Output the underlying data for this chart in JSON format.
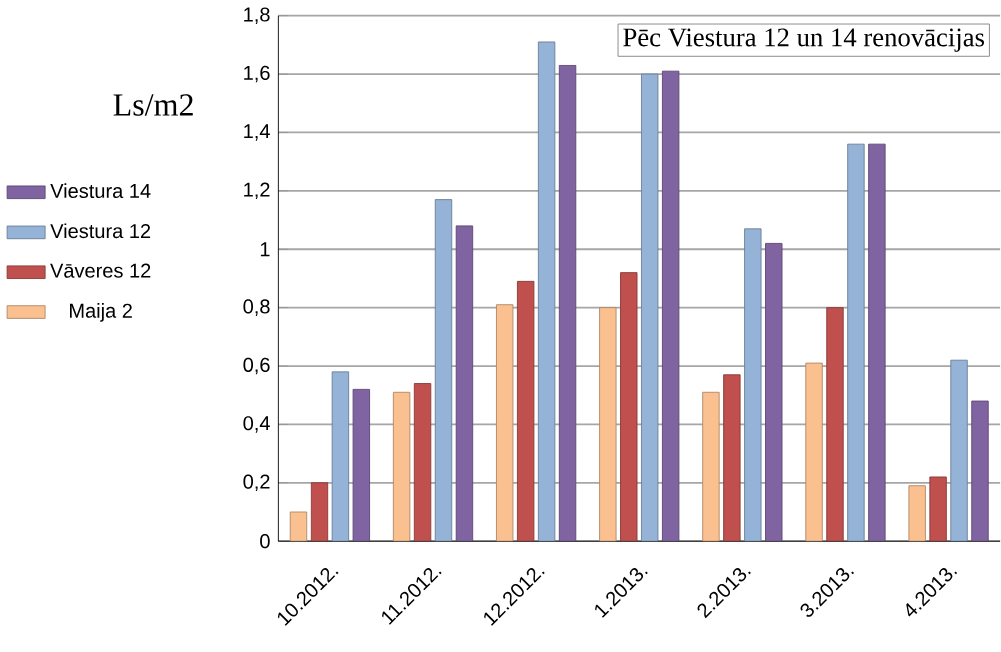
{
  "chart_data": {
    "type": "bar",
    "ylabel": "Ls/m2",
    "categories": [
      "10.2012.",
      "11.2012.",
      "12.2012.",
      "1.2013.",
      "2.2013.",
      "3.2013.",
      "4.2013."
    ],
    "series": [
      {
        "name": "Maija 2",
        "color": "#fac090",
        "values": [
          0.1,
          0.51,
          0.81,
          0.8,
          0.51,
          0.61,
          0.19
        ]
      },
      {
        "name": "Vāveres 12",
        "color": "#c0504d",
        "values": [
          0.2,
          0.54,
          0.89,
          0.92,
          0.57,
          0.8,
          0.22
        ]
      },
      {
        "name": "Viestura 12",
        "color": "#95b3d7",
        "values": [
          0.58,
          1.17,
          1.71,
          1.6,
          1.07,
          1.36,
          0.62
        ]
      },
      {
        "name": "Viestura 14",
        "color": "#8064a2",
        "values": [
          0.52,
          1.08,
          1.63,
          1.61,
          1.02,
          1.36,
          0.48
        ]
      }
    ],
    "ylim": [
      0,
      1.8
    ],
    "yticks": [
      0,
      {
        "value": 0.2,
        "label": "0,2"
      },
      {
        "value": 0.4,
        "label": "0,4"
      },
      {
        "value": 0.6,
        "label": "0,6"
      },
      {
        "value": 0.8,
        "label": "0,8"
      },
      1,
      {
        "value": 1.2,
        "label": "1,2"
      },
      {
        "value": 1.4,
        "label": "1,4"
      },
      {
        "value": 1.6,
        "label": "1,6"
      },
      {
        "value": 1.8,
        "label": "1,8"
      }
    ],
    "grid": "y",
    "legend": "left",
    "annotations": [
      "Pēc Viestura 12 un 14 renovācijas"
    ]
  }
}
